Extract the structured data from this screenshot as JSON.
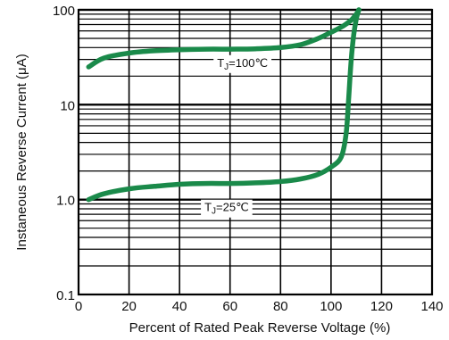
{
  "chart_data": {
    "type": "line",
    "title": "",
    "xlabel": "Percent of Rated Peak Reverse Voltage (%)",
    "ylabel": "Instaneous Reverse Current (μA)",
    "xlim": [
      0,
      140
    ],
    "ylim": [
      0.1,
      100
    ],
    "yscale": "log",
    "grid": true,
    "x_ticks": [
      "0",
      "20",
      "40",
      "60",
      "80",
      "100",
      "120",
      "140"
    ],
    "y_ticks": [
      "100",
      "10",
      "1.0",
      "0.1"
    ],
    "line_color": "#1a8a4a",
    "series": [
      {
        "name": "TJ=100℃",
        "x": [
          4,
          10,
          20,
          30,
          40,
          50,
          60,
          70,
          80,
          88,
          95,
          100,
          105,
          108,
          110,
          111
        ],
        "y": [
          25,
          31,
          35,
          37,
          38,
          38.5,
          38.5,
          38.8,
          40,
          43,
          50,
          58,
          68,
          78,
          90,
          100
        ]
      },
      {
        "name": "TJ=25℃",
        "x": [
          4,
          10,
          20,
          30,
          40,
          50,
          60,
          70,
          80,
          88,
          95,
          100,
          104,
          106,
          107,
          108,
          109,
          110,
          111
        ],
        "y": [
          1.0,
          1.15,
          1.3,
          1.38,
          1.45,
          1.48,
          1.48,
          1.5,
          1.55,
          1.65,
          1.85,
          2.2,
          2.8,
          5,
          12,
          30,
          55,
          80,
          100
        ]
      }
    ],
    "annotations": [
      {
        "text_main": "T",
        "text_sub": "J",
        "text_rest": "=100℃",
        "x": 57,
        "y": 28
      },
      {
        "text_main": "T",
        "text_sub": "J",
        "text_rest": "=25℃",
        "x": 52,
        "y": 0.84
      }
    ]
  }
}
